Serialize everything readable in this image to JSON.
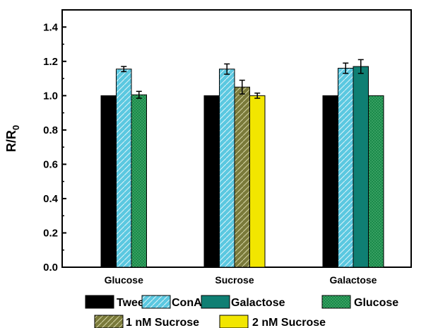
{
  "chart_data": {
    "type": "bar",
    "ylabel": "R/R",
    "ylabel_sub": "0",
    "ylim": [
      0.0,
      1.5
    ],
    "yticks": [
      "0.0",
      "0.2",
      "0.4",
      "0.6",
      "0.8",
      "1.0",
      "1.2",
      "1.4"
    ],
    "categories": [
      "Glucose",
      "Sucrose",
      "Galactose"
    ],
    "series": [
      {
        "name": "Tween",
        "color": "#000000",
        "pattern": "solid",
        "values": [
          1.0,
          1.0,
          1.0
        ],
        "errors": [
          null,
          null,
          null
        ]
      },
      {
        "name": "ConA",
        "color": "#5BC8E0",
        "pattern": "diagonal",
        "values": [
          1.155,
          1.155,
          1.16
        ],
        "errors": [
          0.015,
          0.03,
          0.03
        ]
      },
      {
        "name": "Galactose",
        "color": "#0F7F73",
        "pattern": "solid",
        "values": [
          null,
          null,
          1.17
        ],
        "errors": [
          null,
          null,
          0.04
        ]
      },
      {
        "name": "Glucose",
        "color": "#1A8A4A",
        "pattern": "dots",
        "values": [
          1.005,
          null,
          1.0
        ],
        "errors": [
          0.02,
          null,
          null
        ]
      },
      {
        "name": "1 nM Sucrose",
        "color": "#7A7A3A",
        "pattern": "diagonal",
        "values": [
          null,
          1.05,
          null
        ],
        "errors": [
          null,
          0.04,
          null
        ]
      },
      {
        "name": "2 nM Sucrose",
        "color": "#F2E600",
        "pattern": "solid",
        "values": [
          null,
          1.0,
          null
        ],
        "errors": [
          null,
          0.015,
          null
        ]
      }
    ],
    "bar_order": [
      [
        "Tween",
        "ConA",
        "Glucose"
      ],
      [
        "Tween",
        "ConA",
        "1 nM Sucrose",
        "2 nM Sucrose"
      ],
      [
        "Tween",
        "ConA",
        "Galactose",
        "Glucose"
      ]
    ],
    "legend_placement": "bottom",
    "grid": false
  }
}
